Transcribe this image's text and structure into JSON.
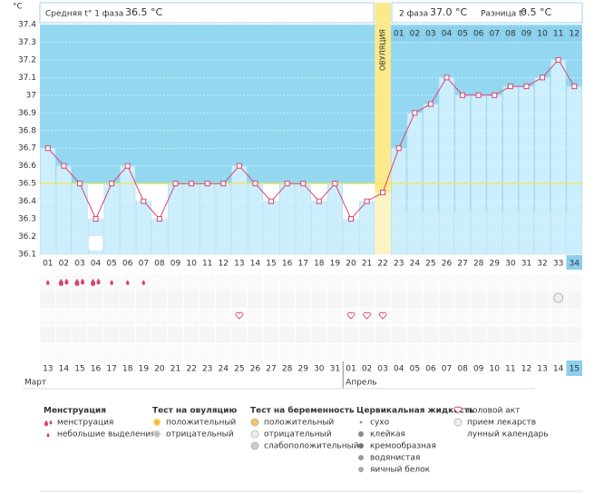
{
  "header": {
    "phase1_label": "Средняя t° 1 фаза",
    "phase1_value": "36.5 °C",
    "phase2_label": "2 фаза",
    "phase2_value": "37.0 °C",
    "diff_label": "Разница t°",
    "diff_value": "0.5 °C"
  },
  "chart_data": {
    "type": "line",
    "y_unit": "°C",
    "color": "#d9446f",
    "ovulation_label": "ОВУЛЯЦИЯ",
    "coverline": 36.5,
    "categories": [
      "01",
      "02",
      "03",
      "04",
      "05",
      "06",
      "07",
      "08",
      "09",
      "10",
      "11",
      "12",
      "13",
      "14",
      "15",
      "16",
      "17",
      "18",
      "19",
      "20",
      "21",
      "22",
      "23",
      "24",
      "25",
      "26",
      "27",
      "28",
      "29",
      "30",
      "31",
      "32",
      "33",
      "34"
    ],
    "values": [
      36.7,
      36.6,
      36.5,
      36.3,
      36.5,
      36.6,
      36.4,
      36.3,
      36.5,
      36.5,
      36.5,
      36.5,
      36.6,
      36.5,
      36.4,
      36.5,
      36.5,
      36.4,
      36.5,
      36.3,
      36.4,
      36.45,
      36.7,
      36.9,
      36.95,
      37.1,
      37.0,
      37.0,
      37.0,
      37.05,
      37.05,
      37.1,
      37.2,
      37.05
    ],
    "ylim": [
      36.1,
      37.4
    ],
    "yticks": [
      36.1,
      36.2,
      36.3,
      36.4,
      36.5,
      36.6,
      36.7,
      36.8,
      36.9,
      37,
      37.1,
      37.2,
      37.3,
      37.4
    ]
  },
  "phase2_days": [
    "01",
    "02",
    "03",
    "04",
    "05",
    "06",
    "07",
    "08",
    "09",
    "10",
    "11",
    "12"
  ],
  "dates": [
    "13",
    "14",
    "15",
    "16",
    "17",
    "18",
    "19",
    "20",
    "21",
    "22",
    "23",
    "24",
    "25",
    "26",
    "27",
    "28",
    "29",
    "30",
    "31",
    "01",
    "02",
    "03",
    "04",
    "05",
    "06",
    "07",
    "08",
    "09",
    "10",
    "11",
    "12",
    "13",
    "14",
    "15"
  ],
  "months": [
    "Март",
    "Апрель"
  ],
  "legend": [
    {
      "title": "Менструация",
      "items": [
        "менструация",
        "небольшие выделения"
      ]
    },
    {
      "title": "Тест на овуляцию",
      "items": [
        "положительный",
        "отрицательный"
      ]
    },
    {
      "title": "Тест на беременность",
      "items": [
        "положительный",
        "отрицательный",
        "слабоположительный"
      ]
    },
    {
      "title": "Цервикальная жидкость",
      "items": [
        "сухо",
        "клейкая",
        "кремообразная",
        "водянистая",
        "яичный белок"
      ]
    },
    {
      "items": [
        "половой акт",
        "прием лекарств",
        "лунный календарь"
      ]
    }
  ]
}
